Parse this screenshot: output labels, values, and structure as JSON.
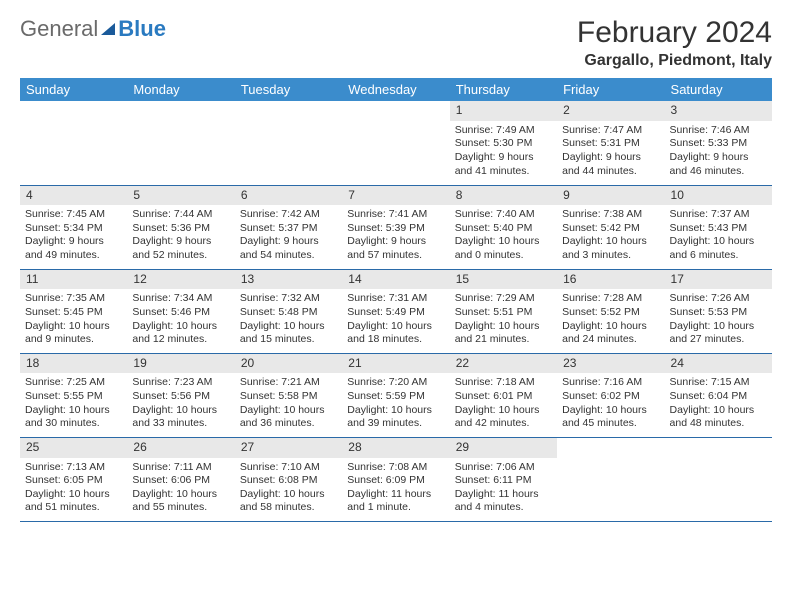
{
  "logo": {
    "general": "General",
    "blue": "Blue"
  },
  "title": "February 2024",
  "location": "Gargallo, Piedmont, Italy",
  "columns": [
    "Sunday",
    "Monday",
    "Tuesday",
    "Wednesday",
    "Thursday",
    "Friday",
    "Saturday"
  ],
  "colors": {
    "header_bg": "#3b8ccc",
    "header_text": "#ffffff",
    "row_border": "#2a6aa8",
    "daynum_bg": "#e8e8e8",
    "logo_blue": "#2a7ac0",
    "logo_gray": "#6a6a6a"
  },
  "grid": [
    [
      {
        "n": "",
        "sr": "",
        "ss": "",
        "dl": ""
      },
      {
        "n": "",
        "sr": "",
        "ss": "",
        "dl": ""
      },
      {
        "n": "",
        "sr": "",
        "ss": "",
        "dl": ""
      },
      {
        "n": "",
        "sr": "",
        "ss": "",
        "dl": ""
      },
      {
        "n": "1",
        "sr": "Sunrise: 7:49 AM",
        "ss": "Sunset: 5:30 PM",
        "dl": "Daylight: 9 hours and 41 minutes."
      },
      {
        "n": "2",
        "sr": "Sunrise: 7:47 AM",
        "ss": "Sunset: 5:31 PM",
        "dl": "Daylight: 9 hours and 44 minutes."
      },
      {
        "n": "3",
        "sr": "Sunrise: 7:46 AM",
        "ss": "Sunset: 5:33 PM",
        "dl": "Daylight: 9 hours and 46 minutes."
      }
    ],
    [
      {
        "n": "4",
        "sr": "Sunrise: 7:45 AM",
        "ss": "Sunset: 5:34 PM",
        "dl": "Daylight: 9 hours and 49 minutes."
      },
      {
        "n": "5",
        "sr": "Sunrise: 7:44 AM",
        "ss": "Sunset: 5:36 PM",
        "dl": "Daylight: 9 hours and 52 minutes."
      },
      {
        "n": "6",
        "sr": "Sunrise: 7:42 AM",
        "ss": "Sunset: 5:37 PM",
        "dl": "Daylight: 9 hours and 54 minutes."
      },
      {
        "n": "7",
        "sr": "Sunrise: 7:41 AM",
        "ss": "Sunset: 5:39 PM",
        "dl": "Daylight: 9 hours and 57 minutes."
      },
      {
        "n": "8",
        "sr": "Sunrise: 7:40 AM",
        "ss": "Sunset: 5:40 PM",
        "dl": "Daylight: 10 hours and 0 minutes."
      },
      {
        "n": "9",
        "sr": "Sunrise: 7:38 AM",
        "ss": "Sunset: 5:42 PM",
        "dl": "Daylight: 10 hours and 3 minutes."
      },
      {
        "n": "10",
        "sr": "Sunrise: 7:37 AM",
        "ss": "Sunset: 5:43 PM",
        "dl": "Daylight: 10 hours and 6 minutes."
      }
    ],
    [
      {
        "n": "11",
        "sr": "Sunrise: 7:35 AM",
        "ss": "Sunset: 5:45 PM",
        "dl": "Daylight: 10 hours and 9 minutes."
      },
      {
        "n": "12",
        "sr": "Sunrise: 7:34 AM",
        "ss": "Sunset: 5:46 PM",
        "dl": "Daylight: 10 hours and 12 minutes."
      },
      {
        "n": "13",
        "sr": "Sunrise: 7:32 AM",
        "ss": "Sunset: 5:48 PM",
        "dl": "Daylight: 10 hours and 15 minutes."
      },
      {
        "n": "14",
        "sr": "Sunrise: 7:31 AM",
        "ss": "Sunset: 5:49 PM",
        "dl": "Daylight: 10 hours and 18 minutes."
      },
      {
        "n": "15",
        "sr": "Sunrise: 7:29 AM",
        "ss": "Sunset: 5:51 PM",
        "dl": "Daylight: 10 hours and 21 minutes."
      },
      {
        "n": "16",
        "sr": "Sunrise: 7:28 AM",
        "ss": "Sunset: 5:52 PM",
        "dl": "Daylight: 10 hours and 24 minutes."
      },
      {
        "n": "17",
        "sr": "Sunrise: 7:26 AM",
        "ss": "Sunset: 5:53 PM",
        "dl": "Daylight: 10 hours and 27 minutes."
      }
    ],
    [
      {
        "n": "18",
        "sr": "Sunrise: 7:25 AM",
        "ss": "Sunset: 5:55 PM",
        "dl": "Daylight: 10 hours and 30 minutes."
      },
      {
        "n": "19",
        "sr": "Sunrise: 7:23 AM",
        "ss": "Sunset: 5:56 PM",
        "dl": "Daylight: 10 hours and 33 minutes."
      },
      {
        "n": "20",
        "sr": "Sunrise: 7:21 AM",
        "ss": "Sunset: 5:58 PM",
        "dl": "Daylight: 10 hours and 36 minutes."
      },
      {
        "n": "21",
        "sr": "Sunrise: 7:20 AM",
        "ss": "Sunset: 5:59 PM",
        "dl": "Daylight: 10 hours and 39 minutes."
      },
      {
        "n": "22",
        "sr": "Sunrise: 7:18 AM",
        "ss": "Sunset: 6:01 PM",
        "dl": "Daylight: 10 hours and 42 minutes."
      },
      {
        "n": "23",
        "sr": "Sunrise: 7:16 AM",
        "ss": "Sunset: 6:02 PM",
        "dl": "Daylight: 10 hours and 45 minutes."
      },
      {
        "n": "24",
        "sr": "Sunrise: 7:15 AM",
        "ss": "Sunset: 6:04 PM",
        "dl": "Daylight: 10 hours and 48 minutes."
      }
    ],
    [
      {
        "n": "25",
        "sr": "Sunrise: 7:13 AM",
        "ss": "Sunset: 6:05 PM",
        "dl": "Daylight: 10 hours and 51 minutes."
      },
      {
        "n": "26",
        "sr": "Sunrise: 7:11 AM",
        "ss": "Sunset: 6:06 PM",
        "dl": "Daylight: 10 hours and 55 minutes."
      },
      {
        "n": "27",
        "sr": "Sunrise: 7:10 AM",
        "ss": "Sunset: 6:08 PM",
        "dl": "Daylight: 10 hours and 58 minutes."
      },
      {
        "n": "28",
        "sr": "Sunrise: 7:08 AM",
        "ss": "Sunset: 6:09 PM",
        "dl": "Daylight: 11 hours and 1 minute."
      },
      {
        "n": "29",
        "sr": "Sunrise: 7:06 AM",
        "ss": "Sunset: 6:11 PM",
        "dl": "Daylight: 11 hours and 4 minutes."
      },
      {
        "n": "",
        "sr": "",
        "ss": "",
        "dl": ""
      },
      {
        "n": "",
        "sr": "",
        "ss": "",
        "dl": ""
      }
    ]
  ]
}
